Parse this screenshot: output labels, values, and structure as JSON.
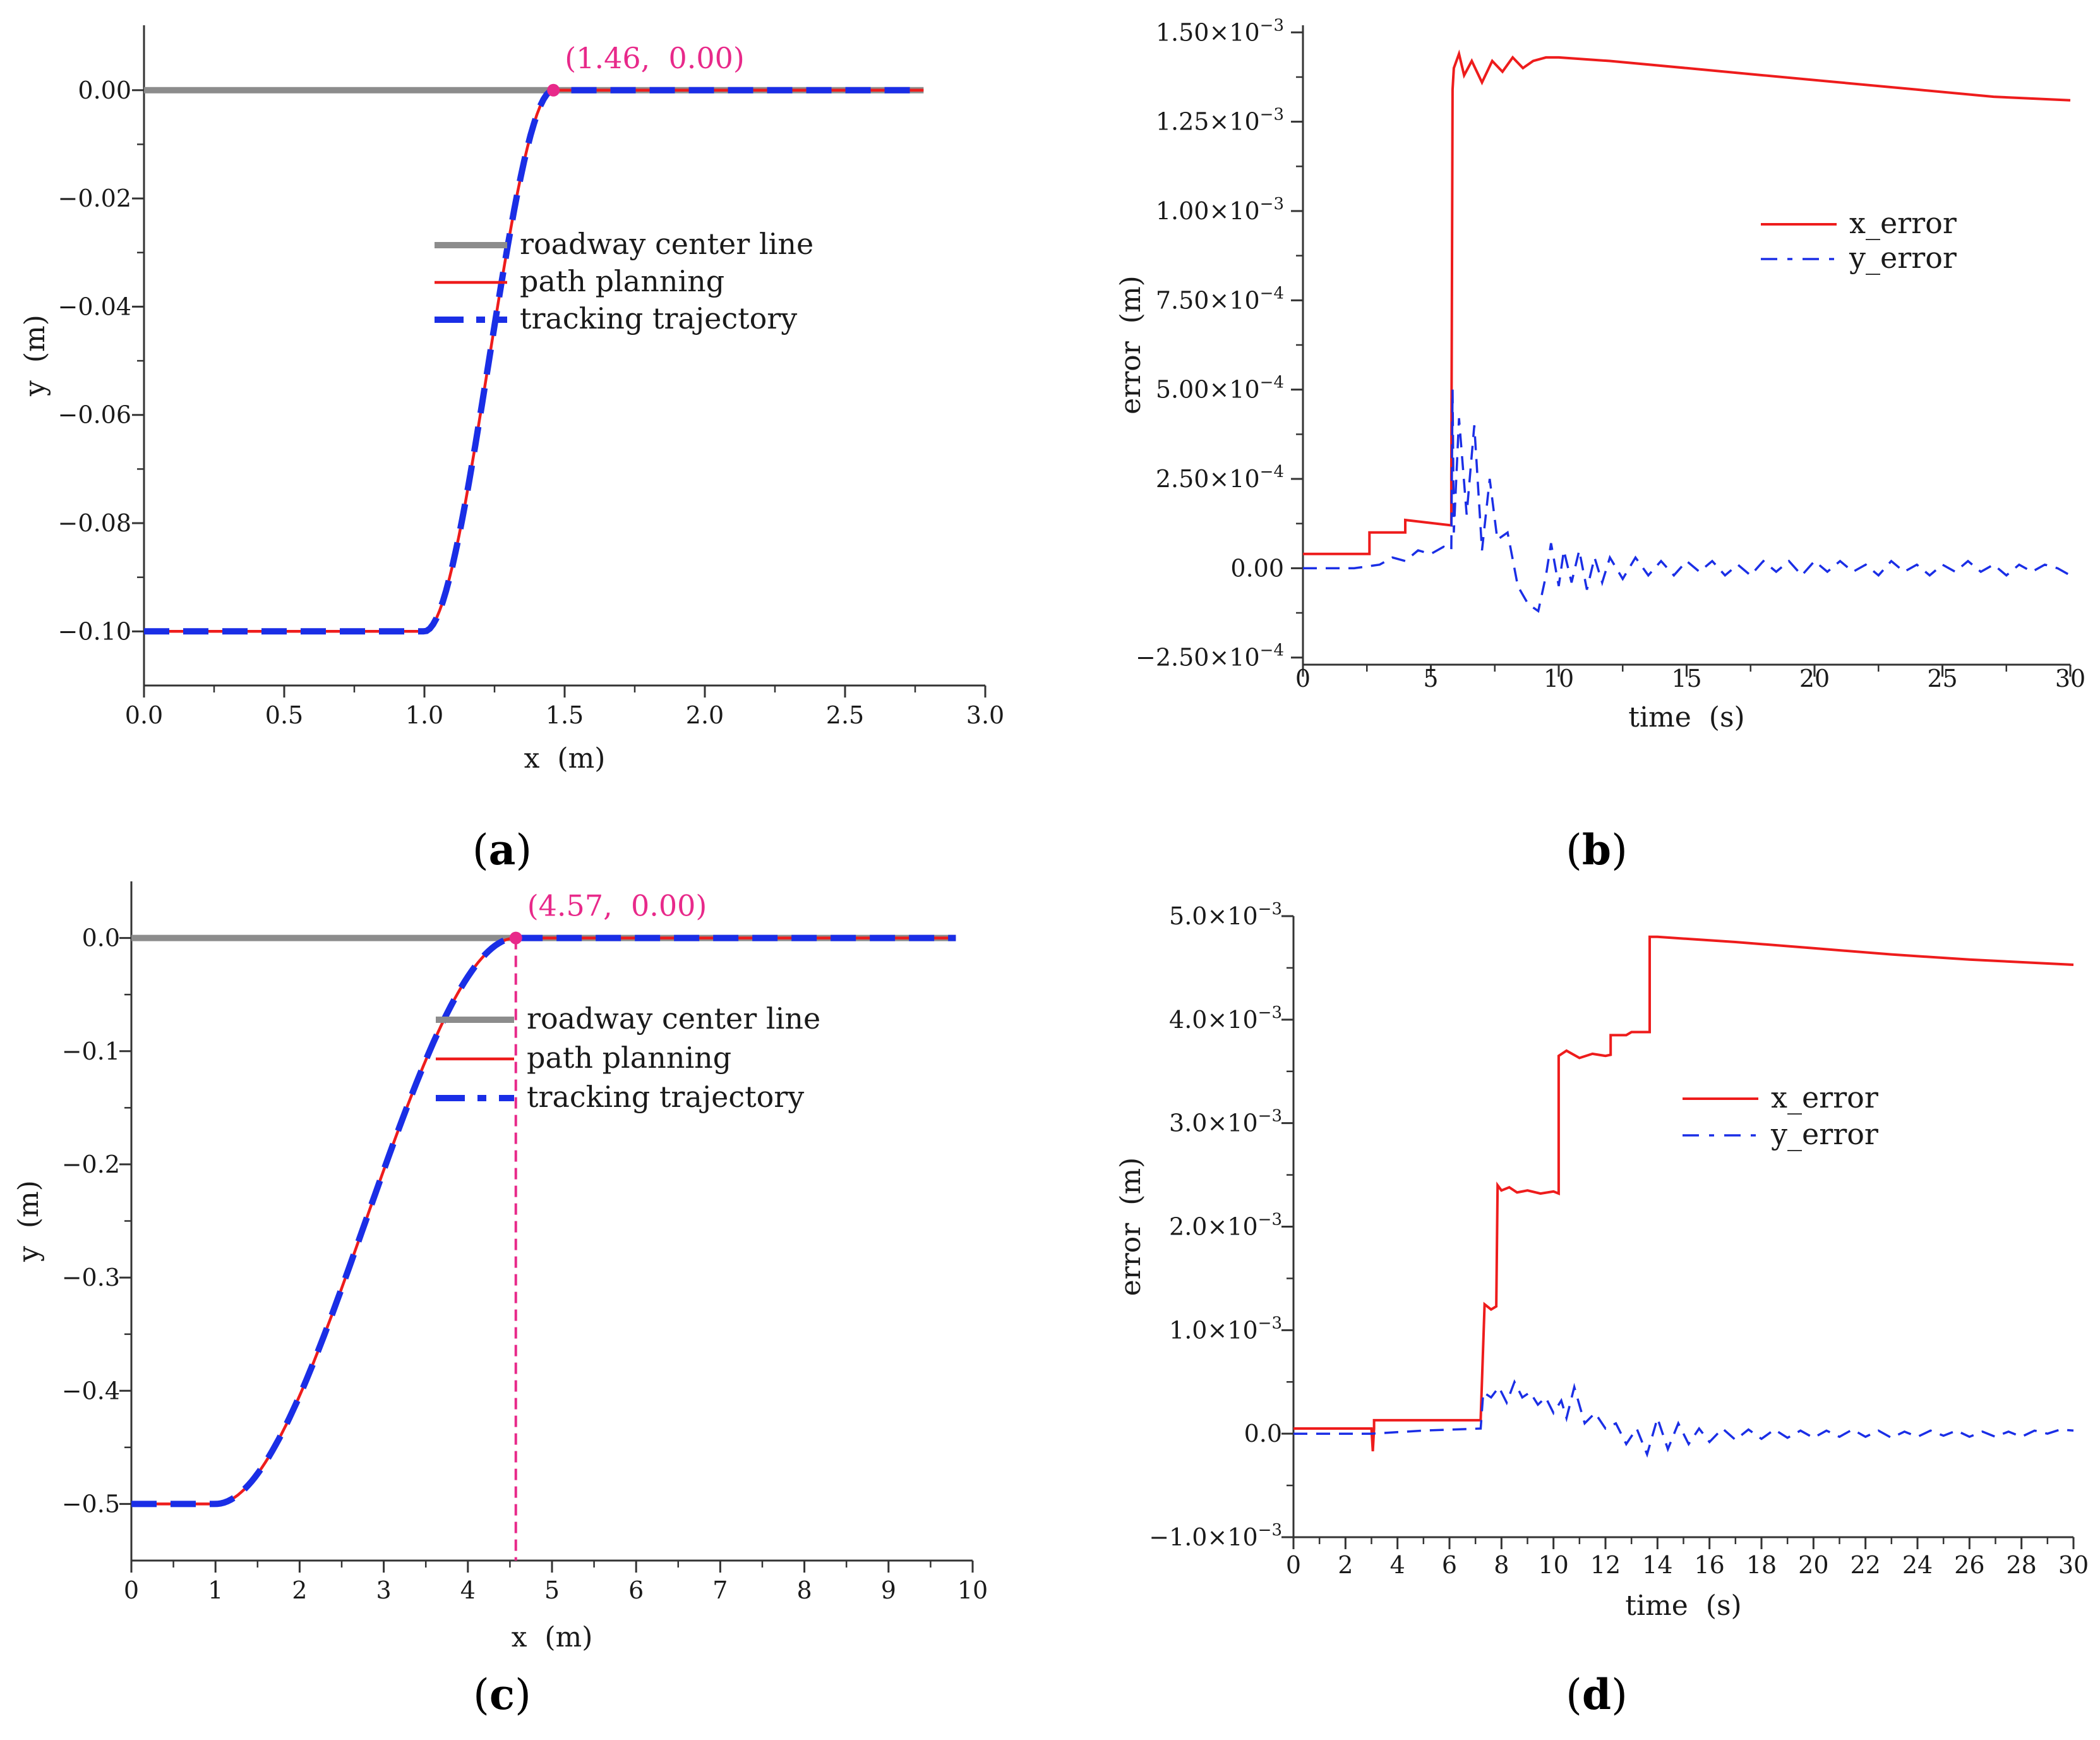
{
  "panels": [
    {
      "id": "a",
      "letter": "a"
    },
    {
      "id": "b",
      "letter": "b"
    },
    {
      "id": "c",
      "letter": "c"
    },
    {
      "id": "d",
      "letter": "d"
    }
  ],
  "colors": {
    "centerline": "#8c8c8c",
    "planning": "#ee1c1c",
    "tracking": "#1a2ee6",
    "annotation": "#e8298a",
    "axis": "#333333"
  },
  "chart_data": [
    {
      "id": "a",
      "type": "line",
      "xlabel": "x  (m)",
      "ylabel": "y  (m)",
      "xlim": [
        0,
        3.0
      ],
      "ylim": [
        -0.11,
        0.012
      ],
      "xticks": [
        0,
        0.5,
        1.0,
        1.5,
        2.0,
        2.5,
        3.0
      ],
      "xtick_labels": [
        "0.0",
        "0.5",
        "1.0",
        "1.5",
        "2.0",
        "2.5",
        "3.0"
      ],
      "yticks": [
        0,
        -0.02,
        -0.04,
        -0.06,
        -0.08,
        -0.1
      ],
      "ytick_labels": [
        "0.00",
        "−0.02",
        "−0.04",
        "−0.06",
        "−0.08",
        "−0.10"
      ],
      "series": [
        {
          "name": "roadway center line",
          "style": "centerline",
          "x": [
            0,
            2.78
          ],
          "y": [
            0,
            0
          ]
        },
        {
          "name": "path planning",
          "style": "planning",
          "transition": {
            "x0": 0,
            "x1": 1.0,
            "x2": 1.46,
            "x3": 2.78,
            "y_start": -0.1,
            "y_end": 0
          }
        },
        {
          "name": "tracking trajectory",
          "style": "tracking",
          "transition": {
            "x0": 0,
            "x1": 1.0,
            "x2": 1.46,
            "x3": 2.78,
            "y_start": -0.1,
            "y_end": 0
          }
        }
      ],
      "annotation": {
        "label": "(1.46,  0.00)",
        "x": 1.46,
        "y": 0.0,
        "dashed_drop": false
      },
      "legend_position": "center-right"
    },
    {
      "id": "b",
      "type": "line",
      "xlabel": "time  (s)",
      "ylabel": "error  (m)",
      "xlim": [
        0,
        30
      ],
      "ylim": [
        -0.00027,
        0.00152
      ],
      "xticks": [
        0,
        5,
        10,
        15,
        20,
        25,
        30
      ],
      "xtick_labels": [
        "0",
        "5",
        "10",
        "15",
        "20",
        "25",
        "30"
      ],
      "yticks": [
        -0.00025,
        0,
        0.00025,
        0.0005,
        0.00075,
        0.001,
        0.00125,
        0.0015
      ],
      "ytick_labels": [
        {
          "mant": "−2.50",
          "exp": "−4"
        },
        {
          "mant": "0.00",
          "exp": ""
        },
        {
          "mant": "2.50",
          "exp": "−4"
        },
        {
          "mant": "5.00",
          "exp": "−4"
        },
        {
          "mant": "7.50",
          "exp": "−4"
        },
        {
          "mant": "1.00",
          "exp": "−3"
        },
        {
          "mant": "1.25",
          "exp": "−3"
        },
        {
          "mant": "1.50",
          "exp": "−3"
        }
      ],
      "series": [
        {
          "name": "x_error",
          "style": "xerr",
          "x": [
            0,
            2.6,
            2.6,
            4.0,
            4.0,
            5.8,
            5.8,
            5.85,
            5.9,
            6.1,
            6.3,
            6.6,
            7.0,
            7.4,
            7.8,
            8.2,
            8.6,
            9.0,
            9.5,
            10,
            12,
            15,
            18,
            21,
            24,
            27,
            30
          ],
          "y": [
            4e-05,
            4e-05,
            0.0001,
            0.0001,
            0.000135,
            0.00012,
            0.00025,
            0.00134,
            0.0014,
            0.00144,
            0.00138,
            0.00142,
            0.00136,
            0.00142,
            0.00139,
            0.00143,
            0.0014,
            0.00142,
            0.00143,
            0.00143,
            0.00142,
            0.0014,
            0.00138,
            0.00136,
            0.00134,
            0.00132,
            0.00131
          ]
        },
        {
          "name": "y_error",
          "style": "yerr",
          "x": [
            0,
            2,
            3,
            3.5,
            4,
            4.5,
            5,
            5.5,
            5.8,
            5.85,
            5.9,
            6.1,
            6.4,
            6.7,
            7.0,
            7.3,
            7.6,
            8.0,
            8.4,
            8.8,
            9.2,
            9.5,
            9.7,
            10.0,
            10.2,
            10.5,
            10.8,
            11.1,
            11.4,
            11.7,
            12.0,
            12.5,
            13.0,
            13.5,
            14,
            14.5,
            15,
            15.5,
            16,
            16.5,
            17,
            17.5,
            18,
            18.5,
            19,
            19.5,
            20,
            20.5,
            21,
            21.5,
            22,
            22.5,
            23,
            23.5,
            24,
            24.5,
            25,
            25.5,
            26,
            26.5,
            27,
            27.5,
            28,
            28.5,
            29,
            29.5,
            30
          ],
          "y": [
            0,
            0,
            1e-05,
            3e-05,
            2e-05,
            5e-05,
            4e-05,
            6e-05,
            5e-05,
            0.0005,
            0.0001,
            0.00042,
            0.00015,
            0.0004,
            5e-05,
            0.00025,
            8e-05,
            0.0001,
            -5e-05,
            -0.0001,
            -0.00012,
            -2e-05,
            7e-05,
            -5e-05,
            5e-05,
            -4e-05,
            5e-05,
            -6e-05,
            3e-05,
            -4e-05,
            3e-05,
            -3e-05,
            3e-05,
            -2e-05,
            2e-05,
            -2e-05,
            2e-05,
            -1e-05,
            2e-05,
            -2e-05,
            1e-05,
            -2e-05,
            2e-05,
            -1e-05,
            2e-05,
            -2e-05,
            2e-05,
            -1e-05,
            2e-05,
            -1e-05,
            1e-05,
            -2e-05,
            2e-05,
            -1e-05,
            1e-05,
            -2e-05,
            1e-05,
            -1e-05,
            2e-05,
            -1e-05,
            1e-05,
            -2e-05,
            1e-05,
            -1e-05,
            1e-05,
            0.0,
            -2e-05
          ]
        }
      ],
      "legend_position": "upper-right"
    },
    {
      "id": "c",
      "type": "line",
      "xlabel": "x  (m)",
      "ylabel": "y  (m)",
      "xlim": [
        0,
        10
      ],
      "ylim": [
        -0.55,
        0.05
      ],
      "xticks": [
        0,
        1,
        2,
        3,
        4,
        5,
        6,
        7,
        8,
        9,
        10
      ],
      "xtick_labels": [
        "0",
        "1",
        "2",
        "3",
        "4",
        "5",
        "6",
        "7",
        "8",
        "9",
        "10"
      ],
      "yticks": [
        0,
        -0.1,
        -0.2,
        -0.3,
        -0.4,
        -0.5
      ],
      "ytick_labels": [
        "0.0",
        "−0.1",
        "−0.2",
        "−0.3",
        "−0.4",
        "−0.5"
      ],
      "series": [
        {
          "name": "roadway center line",
          "style": "centerline",
          "x": [
            0,
            9.8
          ],
          "y": [
            0,
            0
          ]
        },
        {
          "name": "path planning",
          "style": "planning",
          "transition": {
            "x0": 0,
            "x1": 1.0,
            "x2": 4.57,
            "x3": 9.8,
            "y_start": -0.5,
            "y_end": 0
          }
        },
        {
          "name": "tracking trajectory",
          "style": "tracking",
          "transition": {
            "x0": 0,
            "x1": 1.0,
            "x2": 4.57,
            "x3": 9.8,
            "y_start": -0.5,
            "y_end": 0
          }
        }
      ],
      "annotation": {
        "label": "(4.57,  0.00)",
        "x": 4.57,
        "y": 0.0,
        "dashed_drop": true
      },
      "legend_position": "center-right"
    },
    {
      "id": "d",
      "type": "line",
      "xlabel": "time  (s)",
      "ylabel": "error  (m)",
      "xlim": [
        0,
        30
      ],
      "ylim": [
        -0.001,
        0.005
      ],
      "xticks": [
        0,
        2,
        4,
        6,
        8,
        10,
        12,
        14,
        16,
        18,
        20,
        22,
        24,
        26,
        28,
        30
      ],
      "xtick_labels": [
        "0",
        "2",
        "4",
        "6",
        "8",
        "10",
        "12",
        "14",
        "16",
        "18",
        "20",
        "22",
        "24",
        "26",
        "28",
        "30"
      ],
      "yticks": [
        -0.001,
        0,
        0.001,
        0.002,
        0.003,
        0.004,
        0.005
      ],
      "ytick_labels": [
        {
          "mant": "−1.0",
          "exp": "−3"
        },
        {
          "mant": "0.0",
          "exp": ""
        },
        {
          "mant": "1.0",
          "exp": "−3"
        },
        {
          "mant": "2.0",
          "exp": "−3"
        },
        {
          "mant": "3.0",
          "exp": "−3"
        },
        {
          "mant": "4.0",
          "exp": "−3"
        },
        {
          "mant": "5.0",
          "exp": "−3"
        }
      ],
      "series": [
        {
          "name": "x_error",
          "style": "xerr",
          "x": [
            0,
            3.0,
            3.05,
            3.1,
            3.1,
            7.2,
            7.2,
            7.35,
            7.6,
            7.8,
            7.85,
            8.0,
            8.3,
            8.6,
            9.0,
            9.5,
            10,
            10.2,
            10.2,
            10.5,
            11.0,
            11.5,
            12.0,
            12.2,
            12.2,
            12.8,
            13.0,
            13.7,
            13.7,
            14.0,
            17,
            20,
            23,
            26,
            30
          ],
          "y": [
            5e-05,
            5e-05,
            -0.00017,
            5e-05,
            0.00013,
            0.00013,
            0.00014,
            0.00125,
            0.0012,
            0.00123,
            0.0024,
            0.00235,
            0.00238,
            0.00233,
            0.00235,
            0.00232,
            0.00234,
            0.00232,
            0.00365,
            0.0037,
            0.00363,
            0.00367,
            0.00365,
            0.00366,
            0.00385,
            0.00385,
            0.00388,
            0.00388,
            0.0048,
            0.0048,
            0.00475,
            0.00469,
            0.00463,
            0.00458,
            0.00453
          ]
        },
        {
          "name": "y_error",
          "style": "yerr",
          "x": [
            0,
            3,
            5,
            7.2,
            7.3,
            7.6,
            7.9,
            8.2,
            8.5,
            8.8,
            9.1,
            9.4,
            9.7,
            10.0,
            10.3,
            10.5,
            10.8,
            11.2,
            11.6,
            12.0,
            12.4,
            12.8,
            13.2,
            13.6,
            14.0,
            14.4,
            14.8,
            15.2,
            15.6,
            16.0,
            16.5,
            17,
            17.5,
            18,
            18.5,
            19,
            19.5,
            20,
            20.5,
            21,
            21.5,
            22,
            22.5,
            23,
            23.5,
            24,
            24.5,
            25,
            25.5,
            26,
            26.5,
            27,
            27.5,
            28,
            28.5,
            29,
            29.5,
            30
          ],
          "y": [
            0,
            0,
            3e-05,
            5e-05,
            0.0004,
            0.00035,
            0.00045,
            0.0003,
            0.0005,
            0.00035,
            0.0004,
            0.00028,
            0.00035,
            0.0002,
            0.00032,
            0.00015,
            0.00045,
            0.0001,
            0.0002,
            5e-05,
            0.0001,
            -0.0001,
            5e-05,
            -0.0002,
            0.00015,
            -0.00015,
            0.0001,
            -0.0001,
            5e-05,
            -8e-05,
            5e-05,
            -6e-05,
            4e-05,
            -5e-05,
            4e-05,
            -4e-05,
            3e-05,
            -4e-05,
            3e-05,
            -3e-05,
            4e-05,
            -3e-05,
            3e-05,
            -4e-05,
            2e-05,
            -3e-05,
            3e-05,
            -2e-05,
            3e-05,
            -3e-05,
            2e-05,
            -3e-05,
            2e-05,
            -3e-05,
            3e-05,
            0.0,
            4e-05,
            3e-05
          ]
        }
      ],
      "legend_position": "upper-right"
    }
  ]
}
